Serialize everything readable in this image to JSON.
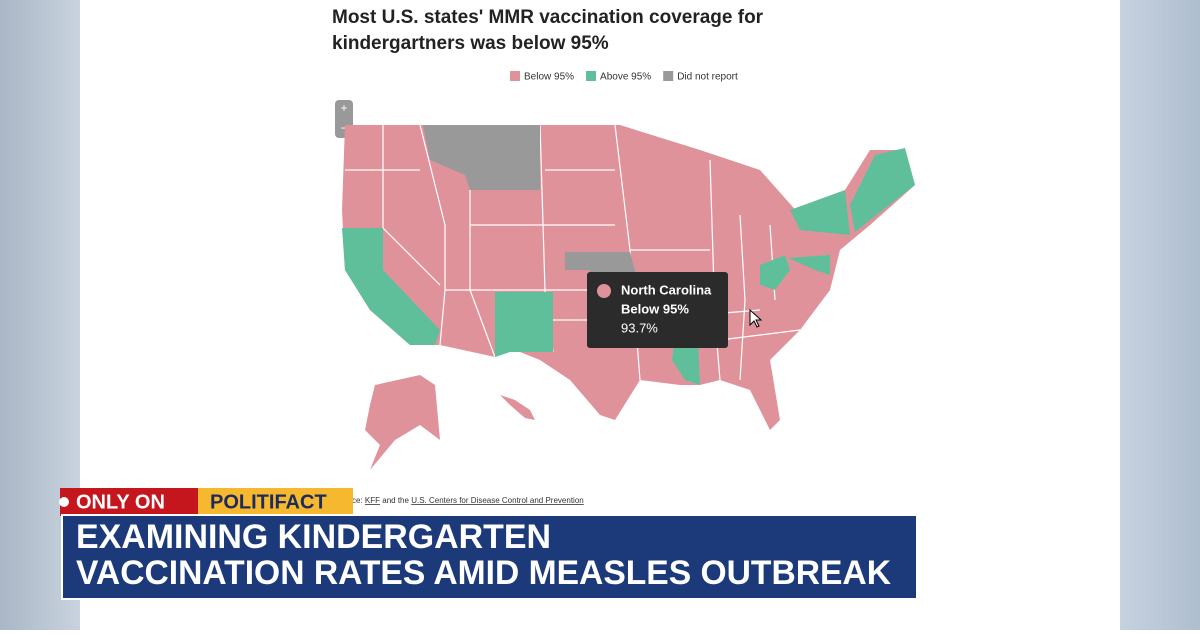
{
  "title": "Most U.S. states' MMR vaccination coverage for kindergartners was below 95%",
  "legend": [
    {
      "label": "Below 95%",
      "color": "#e0929a"
    },
    {
      "label": "Above 95%",
      "color": "#5fbf9b"
    },
    {
      "label": "Did not report",
      "color": "#999999"
    }
  ],
  "zoom": {
    "in": "+",
    "out": "−"
  },
  "tooltip": {
    "state": "North Carolina",
    "category": "Below 95%",
    "value": "93.7%"
  },
  "source": {
    "prefix": "ce:",
    "kff": "KFF",
    "and": "and the",
    "cdc": "U.S. Centers for Disease Control and Prevention"
  },
  "banner": {
    "tag": "ONLY ON",
    "brand": "POLITIFACT",
    "headline": [
      "EXAMINING KINDERGARTEN",
      "VACCINATION RATES AMID MEASLES OUTBREAK"
    ]
  }
}
